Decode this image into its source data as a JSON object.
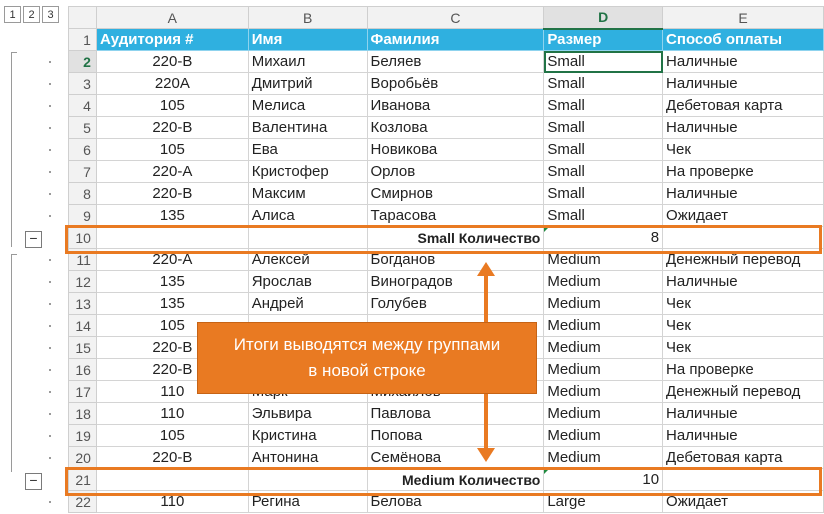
{
  "outline_levels": [
    "1",
    "2",
    "3"
  ],
  "columns": [
    "A",
    "B",
    "C",
    "D",
    "E"
  ],
  "active_column": "D",
  "header_row": {
    "num": "1",
    "cells": [
      "Аудитория #",
      "Имя",
      "Фамилия",
      "Размер",
      "Способ оплаты"
    ]
  },
  "rows": [
    {
      "num": "2",
      "type": "data",
      "cells": [
        "220-B",
        "Михаил",
        "Беляев",
        "Small",
        "Наличные"
      ]
    },
    {
      "num": "3",
      "type": "data",
      "cells": [
        "220A",
        "Дмитрий",
        "Воробьёв",
        "Small",
        "Наличные"
      ]
    },
    {
      "num": "4",
      "type": "data",
      "cells": [
        "105",
        "Мелиса",
        "Иванова",
        "Small",
        "Дебетовая карта"
      ]
    },
    {
      "num": "5",
      "type": "data",
      "cells": [
        "220-B",
        "Валентина",
        "Козлова",
        "Small",
        "Наличные"
      ]
    },
    {
      "num": "6",
      "type": "data",
      "cells": [
        "105",
        "Ева",
        "Новикова",
        "Small",
        "Чек"
      ]
    },
    {
      "num": "7",
      "type": "data",
      "cells": [
        "220-A",
        "Кристофер",
        "Орлов",
        "Small",
        "На проверке"
      ]
    },
    {
      "num": "8",
      "type": "data",
      "cells": [
        "220-B",
        "Максим",
        "Смирнов",
        "Small",
        "Наличные"
      ]
    },
    {
      "num": "9",
      "type": "data",
      "cells": [
        "135",
        "Алиса",
        "Тарасова",
        "Small",
        "Ожидает"
      ]
    },
    {
      "num": "10",
      "type": "subtotal",
      "cells": [
        "",
        "",
        "Small Количество",
        "8",
        ""
      ]
    },
    {
      "num": "11",
      "type": "data",
      "cells": [
        "220-A",
        "Алексей",
        "Богданов",
        "Medium",
        "Денежный перевод"
      ]
    },
    {
      "num": "12",
      "type": "data",
      "cells": [
        "135",
        "Ярослав",
        "Виноградов",
        "Medium",
        "Наличные"
      ]
    },
    {
      "num": "13",
      "type": "data",
      "cells": [
        "135",
        "Андрей",
        "Голубев",
        "Medium",
        "Чек"
      ]
    },
    {
      "num": "14",
      "type": "data",
      "cells": [
        "105",
        "",
        "",
        "Medium",
        "Чек"
      ]
    },
    {
      "num": "15",
      "type": "data",
      "cells": [
        "220-B",
        "",
        "",
        "Medium",
        "Чек"
      ]
    },
    {
      "num": "16",
      "type": "data",
      "cells": [
        "220-B",
        "",
        "",
        "Medium",
        "На проверке"
      ]
    },
    {
      "num": "17",
      "type": "data",
      "cells": [
        "110",
        "Марк",
        "Михайлов",
        "Medium",
        "Денежный перевод"
      ]
    },
    {
      "num": "18",
      "type": "data",
      "cells": [
        "110",
        "Эльвира",
        "Павлова",
        "Medium",
        "Наличные"
      ]
    },
    {
      "num": "19",
      "type": "data",
      "cells": [
        "105",
        "Кристина",
        "Попова",
        "Medium",
        "Наличные"
      ]
    },
    {
      "num": "20",
      "type": "data",
      "cells": [
        "220-B",
        "Антонина",
        "Семёнова",
        "Medium",
        "Дебетовая карта"
      ]
    },
    {
      "num": "21",
      "type": "subtotal",
      "cells": [
        "",
        "",
        "Medium Количество",
        "10",
        ""
      ]
    },
    {
      "num": "22",
      "type": "data",
      "cells": [
        "110",
        "Регина",
        "Белова",
        "Large",
        "Ожидает"
      ]
    }
  ],
  "callout": {
    "line1": "Итоги выводятся между группами",
    "line2": "в новой строке"
  },
  "colors": {
    "header_fill": "#2fb0e0",
    "accent_orange": "#e97a22",
    "excel_green": "#217346"
  }
}
